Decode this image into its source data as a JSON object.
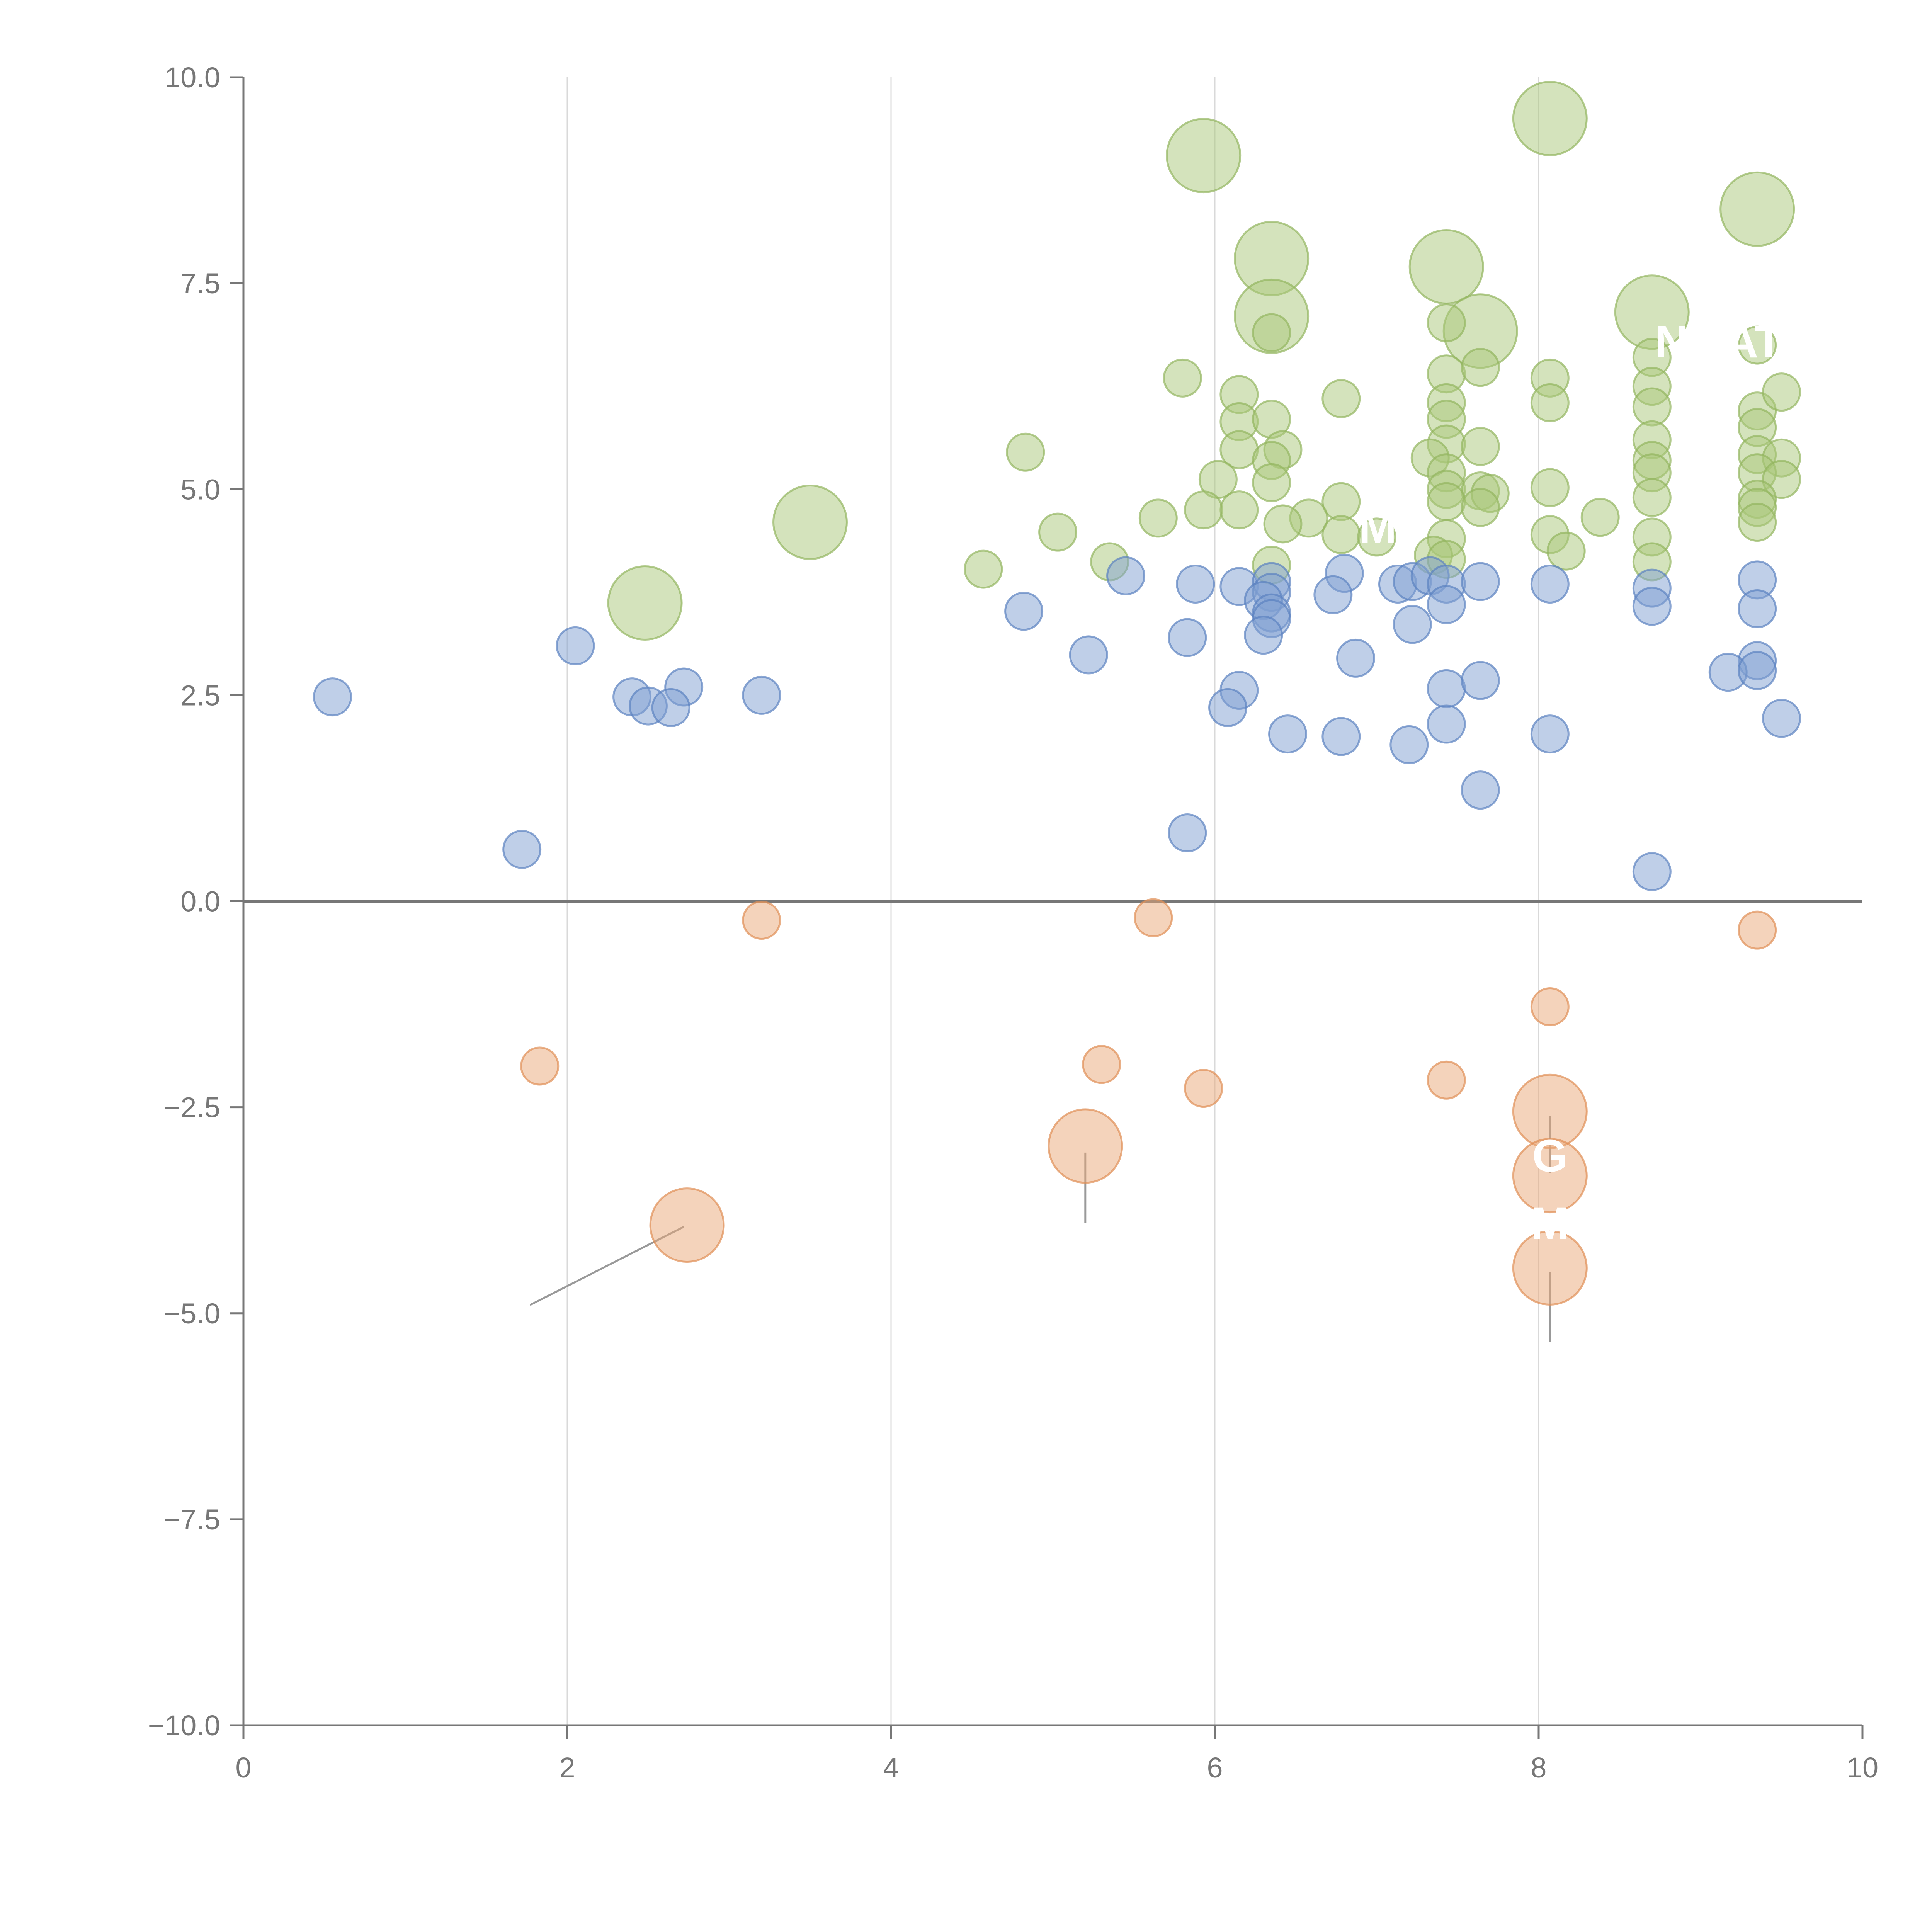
{
  "chart_data": {
    "type": "scatter",
    "title": "",
    "xlabel": "",
    "ylabel": "",
    "xlim": [
      0,
      10
    ],
    "ylim": [
      -10,
      10
    ],
    "x_ticks": [
      0,
      2,
      4,
      6,
      8,
      10
    ],
    "y_ticks": [
      10.0,
      7.5,
      5.0,
      2.5,
      0.0,
      -2.5,
      -5.0,
      -7.5,
      -10.0
    ],
    "x_tick_labels": [
      "0",
      "2",
      "4",
      "6",
      "8",
      "10"
    ],
    "y_tick_labels": [
      "10.0",
      "7.5",
      "5.0",
      "2.5",
      "0.0",
      "−2.5",
      "−5.0",
      "−7.5",
      "−10.0"
    ],
    "vertical_gridlines": [
      2,
      4,
      6,
      8
    ],
    "zero_line": 0,
    "legend": "none",
    "colors": {
      "green": "#a9c77a",
      "green_stroke": "#93b560",
      "blue": "#7fa0d2",
      "blue_stroke": "#5b82c0",
      "orange": "#eaa878",
      "orange_stroke": "#e08f55",
      "axis": "#777777",
      "grid": "#d9d9d9",
      "zero": "#777777",
      "leader": "#999999"
    },
    "series": [
      {
        "name": "green",
        "color": "#a9c77a",
        "points": [
          {
            "x": 5.93,
            "y": 9.05,
            "size": "large"
          },
          {
            "x": 8.07,
            "y": 9.5,
            "size": "large"
          },
          {
            "x": 9.35,
            "y": 8.4,
            "size": "large"
          },
          {
            "x": 6.35,
            "y": 7.8,
            "size": "large"
          },
          {
            "x": 7.43,
            "y": 7.7,
            "size": "large"
          },
          {
            "x": 6.35,
            "y": 7.1,
            "size": "large"
          },
          {
            "x": 7.64,
            "y": 6.92,
            "size": "large"
          },
          {
            "x": 8.7,
            "y": 7.15,
            "size": "large"
          },
          {
            "x": 3.5,
            "y": 4.6,
            "size": "large"
          },
          {
            "x": 2.48,
            "y": 3.62,
            "size": "large"
          },
          {
            "x": 7.43,
            "y": 7.02
          },
          {
            "x": 6.35,
            "y": 6.9
          },
          {
            "x": 5.8,
            "y": 6.35
          },
          {
            "x": 6.15,
            "y": 6.15
          },
          {
            "x": 6.78,
            "y": 6.1
          },
          {
            "x": 7.43,
            "y": 6.4
          },
          {
            "x": 7.64,
            "y": 6.48
          },
          {
            "x": 8.07,
            "y": 6.35
          },
          {
            "x": 8.07,
            "y": 6.05
          },
          {
            "x": 8.7,
            "y": 6.6
          },
          {
            "x": 9.35,
            "y": 6.75
          },
          {
            "x": 8.7,
            "y": 6.25
          },
          {
            "x": 8.7,
            "y": 6.0
          },
          {
            "x": 9.35,
            "y": 5.95
          },
          {
            "x": 9.5,
            "y": 6.18
          },
          {
            "x": 6.15,
            "y": 5.82
          },
          {
            "x": 6.35,
            "y": 5.85
          },
          {
            "x": 7.43,
            "y": 6.05
          },
          {
            "x": 7.43,
            "y": 5.85
          },
          {
            "x": 9.35,
            "y": 5.75
          },
          {
            "x": 6.15,
            "y": 5.48
          },
          {
            "x": 6.42,
            "y": 5.48
          },
          {
            "x": 4.83,
            "y": 5.45
          },
          {
            "x": 6.35,
            "y": 5.35
          },
          {
            "x": 7.43,
            "y": 5.55
          },
          {
            "x": 7.64,
            "y": 5.52
          },
          {
            "x": 8.7,
            "y": 5.6
          },
          {
            "x": 9.35,
            "y": 5.42
          },
          {
            "x": 9.5,
            "y": 5.38
          },
          {
            "x": 7.33,
            "y": 5.38
          },
          {
            "x": 7.43,
            "y": 5.2
          },
          {
            "x": 8.7,
            "y": 5.35
          },
          {
            "x": 8.7,
            "y": 5.2
          },
          {
            "x": 9.35,
            "y": 5.2
          },
          {
            "x": 9.5,
            "y": 5.12
          },
          {
            "x": 6.02,
            "y": 5.12
          },
          {
            "x": 6.35,
            "y": 5.08
          },
          {
            "x": 7.43,
            "y": 5.0
          },
          {
            "x": 7.64,
            "y": 4.98
          },
          {
            "x": 7.7,
            "y": 4.95
          },
          {
            "x": 8.07,
            "y": 5.02
          },
          {
            "x": 8.7,
            "y": 4.9
          },
          {
            "x": 9.35,
            "y": 4.88
          },
          {
            "x": 6.78,
            "y": 4.85
          },
          {
            "x": 7.43,
            "y": 4.85
          },
          {
            "x": 7.64,
            "y": 4.78
          },
          {
            "x": 9.35,
            "y": 4.78
          },
          {
            "x": 5.93,
            "y": 4.75
          },
          {
            "x": 6.15,
            "y": 4.75
          },
          {
            "x": 5.65,
            "y": 4.65
          },
          {
            "x": 6.58,
            "y": 4.65
          },
          {
            "x": 8.38,
            "y": 4.66
          },
          {
            "x": 6.42,
            "y": 4.58
          },
          {
            "x": 9.35,
            "y": 4.6
          },
          {
            "x": 5.03,
            "y": 4.48
          },
          {
            "x": 6.78,
            "y": 4.45
          },
          {
            "x": 7.0,
            "y": 4.42
          },
          {
            "x": 7.43,
            "y": 4.4
          },
          {
            "x": 8.07,
            "y": 4.45
          },
          {
            "x": 8.7,
            "y": 4.42
          },
          {
            "x": 7.35,
            "y": 4.2
          },
          {
            "x": 7.43,
            "y": 4.15
          },
          {
            "x": 8.17,
            "y": 4.25
          },
          {
            "x": 8.7,
            "y": 4.12
          },
          {
            "x": 5.35,
            "y": 4.12
          },
          {
            "x": 6.35,
            "y": 4.08
          },
          {
            "x": 4.57,
            "y": 4.03
          }
        ]
      },
      {
        "name": "blue",
        "color": "#7fa0d2",
        "points": [
          {
            "x": 5.45,
            "y": 3.95
          },
          {
            "x": 5.88,
            "y": 3.85
          },
          {
            "x": 6.15,
            "y": 3.82
          },
          {
            "x": 6.35,
            "y": 3.88
          },
          {
            "x": 6.35,
            "y": 3.75
          },
          {
            "x": 6.8,
            "y": 3.98
          },
          {
            "x": 7.13,
            "y": 3.85
          },
          {
            "x": 7.22,
            "y": 3.88
          },
          {
            "x": 7.33,
            "y": 3.95
          },
          {
            "x": 7.43,
            "y": 3.85
          },
          {
            "x": 7.64,
            "y": 3.88
          },
          {
            "x": 8.07,
            "y": 3.85
          },
          {
            "x": 8.7,
            "y": 3.8
          },
          {
            "x": 9.35,
            "y": 3.9
          },
          {
            "x": 6.73,
            "y": 3.72
          },
          {
            "x": 6.3,
            "y": 3.65
          },
          {
            "x": 4.82,
            "y": 3.52
          },
          {
            "x": 6.35,
            "y": 3.5
          },
          {
            "x": 6.35,
            "y": 3.43
          },
          {
            "x": 7.43,
            "y": 3.6
          },
          {
            "x": 8.7,
            "y": 3.58
          },
          {
            "x": 9.35,
            "y": 3.55
          },
          {
            "x": 7.22,
            "y": 3.36
          },
          {
            "x": 5.83,
            "y": 3.2
          },
          {
            "x": 6.3,
            "y": 3.23
          },
          {
            "x": 2.05,
            "y": 3.1
          },
          {
            "x": 5.22,
            "y": 2.99
          },
          {
            "x": 6.87,
            "y": 2.95
          },
          {
            "x": 9.35,
            "y": 2.92
          },
          {
            "x": 9.17,
            "y": 2.78
          },
          {
            "x": 9.35,
            "y": 2.8
          },
          {
            "x": 2.72,
            "y": 2.6
          },
          {
            "x": 6.15,
            "y": 2.56
          },
          {
            "x": 7.43,
            "y": 2.58
          },
          {
            "x": 7.64,
            "y": 2.68
          },
          {
            "x": 0.55,
            "y": 2.48
          },
          {
            "x": 2.4,
            "y": 2.48
          },
          {
            "x": 2.5,
            "y": 2.37
          },
          {
            "x": 2.64,
            "y": 2.35
          },
          {
            "x": 3.2,
            "y": 2.5
          },
          {
            "x": 6.08,
            "y": 2.35
          },
          {
            "x": 9.5,
            "y": 2.22
          },
          {
            "x": 7.43,
            "y": 2.15
          },
          {
            "x": 6.45,
            "y": 2.03
          },
          {
            "x": 6.78,
            "y": 2.0
          },
          {
            "x": 8.07,
            "y": 2.03
          },
          {
            "x": 7.2,
            "y": 1.9
          },
          {
            "x": 7.64,
            "y": 1.35
          },
          {
            "x": 5.83,
            "y": 0.83
          },
          {
            "x": 1.72,
            "y": 0.63
          },
          {
            "x": 8.7,
            "y": 0.36
          }
        ]
      },
      {
        "name": "orange",
        "color": "#eaa878",
        "points": [
          {
            "x": 3.2,
            "y": -0.23
          },
          {
            "x": 5.62,
            "y": -0.2
          },
          {
            "x": 9.35,
            "y": -0.35
          },
          {
            "x": 8.07,
            "y": -1.28
          },
          {
            "x": 1.83,
            "y": -2.0
          },
          {
            "x": 5.3,
            "y": -1.98
          },
          {
            "x": 5.93,
            "y": -2.27
          },
          {
            "x": 7.43,
            "y": -2.17
          },
          {
            "x": 8.07,
            "y": -2.55,
            "size": "large"
          },
          {
            "x": 5.2,
            "y": -2.97,
            "size": "large"
          },
          {
            "x": 8.07,
            "y": -3.33,
            "size": "large"
          },
          {
            "x": 2.74,
            "y": -3.93,
            "size": "large"
          },
          {
            "x": 8.07,
            "y": -4.45,
            "size": "large"
          }
        ]
      }
    ],
    "annotations": [
      {
        "text": "MY",
        "x": 7.1,
        "y": 4.35
      },
      {
        "text": "N",
        "x": 8.82,
        "y": 6.6
      },
      {
        "text": "AT",
        "x": 9.33,
        "y": 6.6
      },
      {
        "text": "G",
        "x": 8.07,
        "y": -3.28
      },
      {
        "text": "M",
        "x": 8.07,
        "y": -4.1
      }
    ],
    "leader_lines": [
      {
        "x1": 2.72,
        "y1": -3.95,
        "x2": 1.77,
        "y2": -4.9
      },
      {
        "x1": 5.2,
        "y1": -3.05,
        "x2": 5.2,
        "y2": -3.9
      },
      {
        "x1": 8.07,
        "y1": -2.6,
        "x2": 8.07,
        "y2": -3.3
      },
      {
        "x1": 8.07,
        "y1": -4.5,
        "x2": 8.07,
        "y2": -5.35
      }
    ]
  }
}
